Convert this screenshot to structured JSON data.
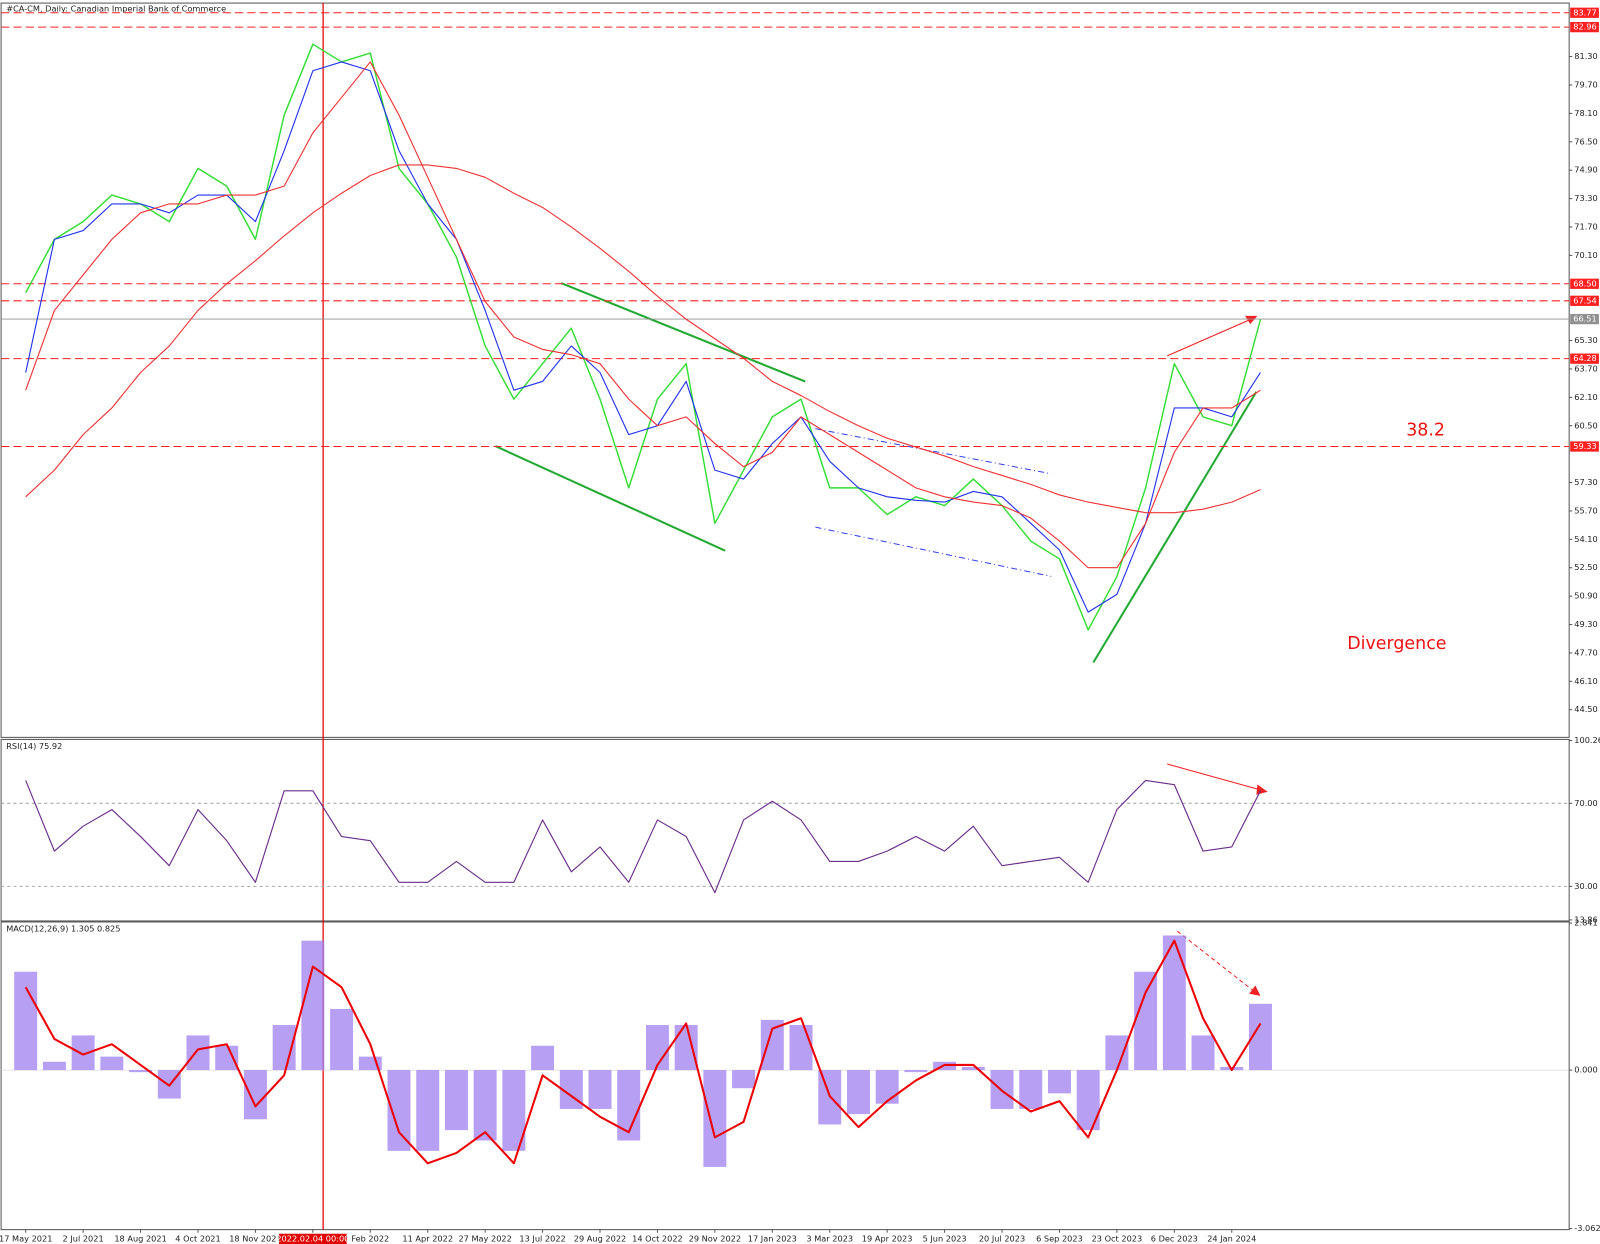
{
  "chart_data": [
    {
      "type": "line",
      "title": "#CA-CM, Daily:  Canadian Imperial Bank of Commerce",
      "ylim": [
        43,
        84.2
      ],
      "yticks": [
        {
          "value": 81.3,
          "label": "81.30"
        },
        {
          "value": 79.7,
          "label": "79.70"
        },
        {
          "value": 78.1,
          "label": "78.10"
        },
        {
          "value": 76.5,
          "label": "76.50"
        },
        {
          "value": 74.9,
          "label": "74.90"
        },
        {
          "value": 73.3,
          "label": "73.30"
        },
        {
          "value": 71.7,
          "label": "71.70"
        },
        {
          "value": 70.1,
          "label": "70.10"
        },
        {
          "value": 65.3,
          "label": "65.30"
        },
        {
          "value": 63.7,
          "label": "63.70"
        },
        {
          "value": 62.1,
          "label": "62.10"
        },
        {
          "value": 60.5,
          "label": "60.50"
        },
        {
          "value": 57.3,
          "label": "57.30"
        },
        {
          "value": 55.7,
          "label": "55.70"
        },
        {
          "value": 54.1,
          "label": "54.10"
        },
        {
          "value": 52.5,
          "label": "52.50"
        },
        {
          "value": 50.9,
          "label": "50.90"
        },
        {
          "value": 49.3,
          "label": "49.30"
        },
        {
          "value": 47.7,
          "label": "47.70"
        },
        {
          "value": 46.1,
          "label": "46.10"
        },
        {
          "value": 44.5,
          "label": "44.50"
        }
      ],
      "levels": [
        {
          "value": 83.77,
          "color": "#ff2020"
        },
        {
          "value": 82.96,
          "color": "#ff2020"
        },
        {
          "value": 68.5,
          "label": "68.50",
          "color": "#ff2020"
        },
        {
          "value": 67.54,
          "color": "#ff2020"
        },
        {
          "value": 66.51,
          "color": "#909090"
        },
        {
          "value": 64.28,
          "color": "#ff2020"
        },
        {
          "value": 59.33,
          "color": "#ff2020"
        }
      ],
      "annotations": [
        "38.2",
        "Divergence"
      ],
      "series": [
        {
          "color": "#33dd33",
          "values": [
            68,
            71,
            72,
            73.5,
            73,
            72,
            75,
            74,
            71,
            78,
            82,
            81,
            81.5,
            75,
            73,
            70,
            65,
            62,
            64,
            66,
            62,
            57,
            62,
            64,
            55,
            58,
            61,
            62,
            57,
            57,
            55.5,
            56.5,
            56,
            57.5,
            56,
            54,
            53,
            49,
            52,
            57,
            64,
            61,
            60.5,
            66.5
          ]
        },
        {
          "color": "#2233ee",
          "values": [
            63.5,
            71,
            71.5,
            73,
            73,
            72.5,
            73.5,
            73.5,
            72,
            76,
            80.5,
            81,
            80.5,
            76,
            73,
            71,
            67,
            62.5,
            63,
            65,
            63.5,
            60,
            60.5,
            63,
            58,
            57.5,
            59.5,
            61,
            58.5,
            57,
            56.5,
            56.3,
            56.2,
            56.8,
            56.5,
            55,
            53.5,
            50,
            51,
            55,
            61.5,
            61.5,
            61,
            63.5
          ]
        },
        {
          "color": "#ee3333",
          "values": [
            62.5,
            67,
            69,
            71,
            72.5,
            73,
            73,
            73.5,
            73.5,
            74,
            77,
            79,
            81,
            78,
            74.5,
            71,
            67.5,
            65.5,
            64.8,
            64.5,
            64,
            62,
            60.5,
            61,
            59.5,
            58.2,
            59,
            61,
            60,
            59,
            58,
            57,
            56.5,
            56.2,
            56,
            55.3,
            54,
            52.5,
            52.5,
            55,
            59,
            61.5,
            61.5,
            62.5
          ]
        },
        {
          "color": "#ee3333",
          "values": [
            56.5,
            58,
            60,
            61.5,
            63.5,
            65,
            67,
            68.5,
            69.8,
            71.2,
            72.5,
            73.6,
            74.6,
            75.2,
            75.2,
            75,
            74.5,
            73.6,
            72.8,
            71.7,
            70.5,
            69.2,
            67.8,
            66.5,
            65.4,
            64.3,
            63,
            62.2,
            61.3,
            60.5,
            59.8,
            59.3,
            58.8,
            58.2,
            57.7,
            57.2,
            56.6,
            56.2,
            55.9,
            55.6,
            55.6,
            55.8,
            56.2,
            56.9
          ]
        }
      ]
    },
    {
      "type": "line",
      "title": "RSI(14) 75.92",
      "ylim": [
        13.86,
        100.26
      ],
      "yticks": [
        100.26,
        {
          "value": 70,
          "label": "70.00"
        },
        {
          "value": 30,
          "label": "30.00"
        },
        13.86
      ],
      "series": [
        {
          "color": "#6a2c8a",
          "values": [
            81,
            47,
            59,
            67,
            54,
            40,
            67,
            52,
            32,
            76,
            76,
            54,
            52,
            32,
            32,
            42,
            32,
            32,
            62,
            37,
            49,
            32,
            62,
            54,
            27,
            62,
            71,
            62,
            42,
            42,
            47,
            54,
            47,
            59,
            40,
            42,
            44,
            32,
            67,
            81,
            79,
            47,
            49,
            76
          ]
        }
      ]
    },
    {
      "type": "bar",
      "title": "MACD(12,26,9) 1.305 0.825",
      "ylim": [
        -3.062,
        2.841
      ],
      "yticks": [
        2.841,
        {
          "value": 0,
          "label": "0.000"
        },
        -3.062
      ],
      "categories": [
        "17 May 2021",
        null,
        "2 Jul 2021",
        null,
        "18 Aug 2021",
        null,
        "4 Oct 2021",
        null,
        "18 Nov 2021",
        null,
        "2022.02.04 00:00",
        null,
        "Feb 2022",
        null,
        "11 Apr 2022",
        null,
        "27 May 2022",
        null,
        "13 Jul 2022",
        null,
        "29 Aug 2022",
        null,
        "14 Oct 2022",
        null,
        "29 Nov 2022",
        null,
        "17 Jan 2023",
        null,
        "3 Mar 2023",
        null,
        "19 Apr 2023",
        null,
        "5 Jun 2023",
        null,
        "20 Jul 2023",
        null,
        "6 Sep 2023",
        null,
        "23 Oct 2023",
        null,
        "6 Dec 2023",
        null,
        "24 Jan 2024",
        null
      ],
      "series": [
        {
          "type": "bar",
          "color": "#9f7ff0",
          "values": [
            1.9,
            0.16,
            0.67,
            0.26,
            -0.04,
            -0.55,
            0.67,
            0.47,
            -0.95,
            0.87,
            2.5,
            1.18,
            0.26,
            -1.56,
            -1.56,
            -1.16,
            -1.36,
            -1.56,
            0.47,
            -0.75,
            -0.75,
            -1.36,
            0.87,
            0.87,
            -1.87,
            -0.35,
            0.97,
            0.87,
            -1.05,
            -0.85,
            -0.65,
            -0.04,
            0.16,
            0.06,
            -0.75,
            -0.75,
            -0.45,
            -1.16,
            0.67,
            1.9,
            2.6,
            0.67,
            0.06,
            1.28
          ]
        },
        {
          "type": "line",
          "color": "#ee0000",
          "values": [
            1.6,
            0.6,
            0.3,
            0.5,
            0.1,
            -0.3,
            0.4,
            0.5,
            -0.7,
            -0.1,
            2.0,
            1.6,
            0.5,
            -1.2,
            -1.8,
            -1.6,
            -1.2,
            -1.8,
            -0.1,
            -0.5,
            -0.9,
            -1.2,
            0.1,
            0.9,
            -1.3,
            -1.0,
            0.8,
            1.0,
            -0.5,
            -1.1,
            -0.6,
            -0.2,
            0.1,
            0.1,
            -0.4,
            -0.8,
            -0.6,
            -1.3,
            0.0,
            1.5,
            2.5,
            1.0,
            0.0,
            0.9
          ]
        }
      ]
    }
  ]
}
